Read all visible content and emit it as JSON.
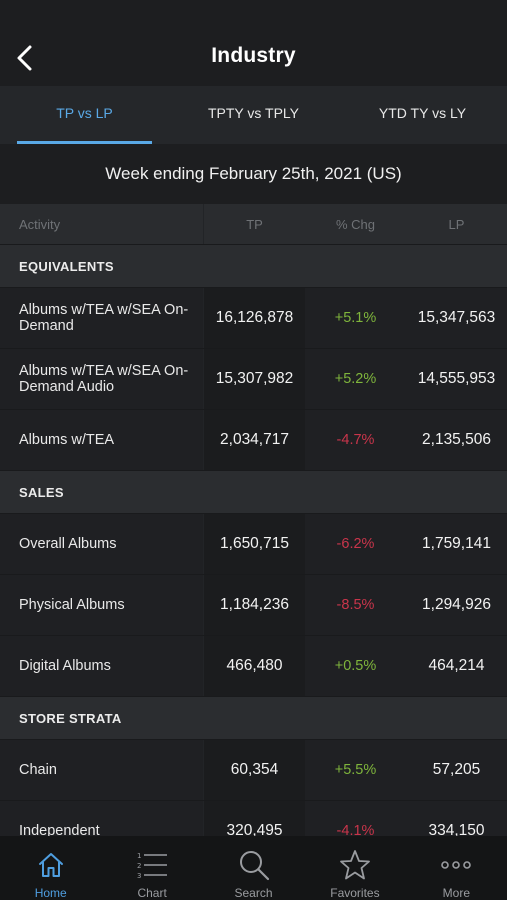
{
  "header": {
    "title": "Industry",
    "back_icon": "chevron-left-icon"
  },
  "tabs": [
    {
      "label": "TP vs LP",
      "active": true
    },
    {
      "label": "TPTY vs TPLY",
      "active": false
    },
    {
      "label": "YTD TY vs LY",
      "active": false
    }
  ],
  "week_label": "Week ending February 25th, 2021 (US)",
  "table": {
    "columns": [
      "Activity",
      "TP",
      "% Chg",
      "LP"
    ],
    "sections": [
      {
        "title": "EQUIVALENTS",
        "rows": [
          {
            "activity": "Albums w/TEA w/SEA On-Demand",
            "tp": "16,126,878",
            "chg": "+5.1%",
            "lp": "15,347,563"
          },
          {
            "activity": "Albums w/TEA w/SEA On-Demand Audio",
            "tp": "15,307,982",
            "chg": "+5.2%",
            "lp": "14,555,953"
          },
          {
            "activity": "Albums w/TEA",
            "tp": "2,034,717",
            "chg": "-4.7%",
            "lp": "2,135,506"
          }
        ]
      },
      {
        "title": "SALES",
        "rows": [
          {
            "activity": "Overall Albums",
            "tp": "1,650,715",
            "chg": "-6.2%",
            "lp": "1,759,141"
          },
          {
            "activity": "Physical Albums",
            "tp": "1,184,236",
            "chg": "-8.5%",
            "lp": "1,294,926"
          },
          {
            "activity": "Digital Albums",
            "tp": "466,480",
            "chg": "+0.5%",
            "lp": "464,214"
          }
        ]
      },
      {
        "title": "STORE STRATA",
        "rows": [
          {
            "activity": "Chain",
            "tp": "60,354",
            "chg": "+5.5%",
            "lp": "57,205"
          },
          {
            "activity": "Independent",
            "tp": "320,495",
            "chg": "-4.1%",
            "lp": "334,150"
          }
        ]
      }
    ]
  },
  "bottom_nav": [
    {
      "label": "Home",
      "icon": "home-icon",
      "active": true
    },
    {
      "label": "Chart",
      "icon": "numbered-list-icon",
      "active": false
    },
    {
      "label": "Search",
      "icon": "search-icon",
      "active": false
    },
    {
      "label": "Favorites",
      "icon": "star-icon",
      "active": false
    },
    {
      "label": "More",
      "icon": "more-dots-icon",
      "active": false
    }
  ],
  "colors": {
    "accent": "#5aa9e6",
    "positive": "#7fb53c",
    "negative": "#c9354b",
    "background": "#1d1e20"
  }
}
